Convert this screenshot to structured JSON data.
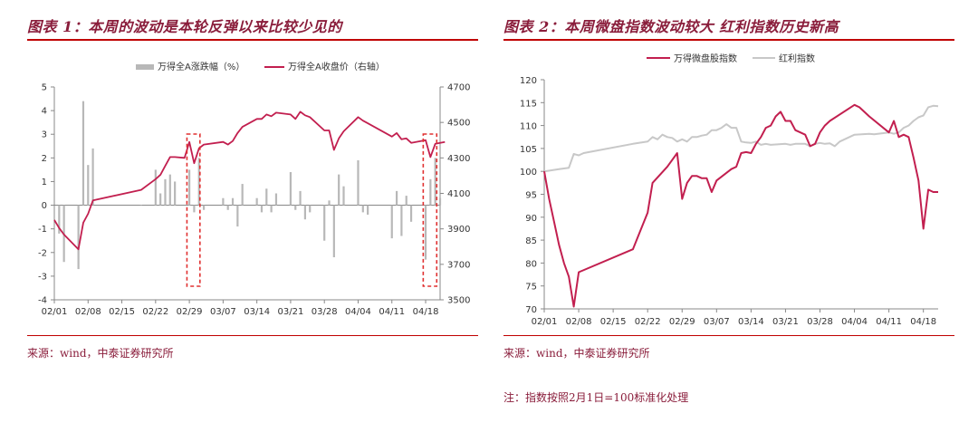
{
  "left": {
    "title": "图表 1：本周的波动是本轮反弹以来比较少见的",
    "source": "来源：wind，中泰证券研究所",
    "chart_data": {
      "type": "bar+line",
      "legend": [
        "万得全A涨跌幅（%）",
        "万得全A收盘价（右轴）"
      ],
      "legend_placement": "top-center",
      "x_ticks": [
        "02/01",
        "02/08",
        "02/15",
        "02/22",
        "02/29",
        "03/07",
        "03/14",
        "03/21",
        "03/28",
        "04/04",
        "04/11",
        "04/18"
      ],
      "y_left": {
        "min": -4,
        "max": 5,
        "ticks": [
          5,
          4,
          3,
          2,
          1,
          0,
          -1,
          -2,
          -3,
          -4
        ]
      },
      "y_right": {
        "min": 3500,
        "max": 4700,
        "ticks": [
          4700,
          4500,
          4300,
          4100,
          3900,
          3700,
          3500
        ]
      },
      "colors": {
        "bars": "#b8b8b8",
        "line": "#c21f4f",
        "highlight": "#e03030"
      },
      "bars": [
        {
          "d": 1,
          "v": -1.2
        },
        {
          "d": 2,
          "v": -2.4
        },
        {
          "d": 5,
          "v": -2.7
        },
        {
          "d": 6,
          "v": 4.4
        },
        {
          "d": 7,
          "v": 1.7
        },
        {
          "d": 8,
          "v": 2.4
        },
        {
          "d": 18,
          "v": 0.0
        },
        {
          "d": 21,
          "v": 1.5
        },
        {
          "d": 22,
          "v": 0.5
        },
        {
          "d": 23,
          "v": 1.1
        },
        {
          "d": 24,
          "v": 1.3
        },
        {
          "d": 25,
          "v": 1.0
        },
        {
          "d": 28,
          "v": 1.5
        },
        {
          "d": 29,
          "v": -0.3
        },
        {
          "d": 30,
          "v": 2.0
        },
        {
          "d": 31,
          "v": -0.2
        },
        {
          "d": 35,
          "v": 0.3
        },
        {
          "d": 36,
          "v": -0.2
        },
        {
          "d": 37,
          "v": 0.3
        },
        {
          "d": 38,
          "v": -0.9
        },
        {
          "d": 39,
          "v": 0.9
        },
        {
          "d": 42,
          "v": 0.3
        },
        {
          "d": 43,
          "v": -0.3
        },
        {
          "d": 44,
          "v": 0.7
        },
        {
          "d": 45,
          "v": -0.3
        },
        {
          "d": 46,
          "v": 0.5
        },
        {
          "d": 49,
          "v": 1.4
        },
        {
          "d": 50,
          "v": -0.2
        },
        {
          "d": 51,
          "v": 0.6
        },
        {
          "d": 52,
          "v": -0.6
        },
        {
          "d": 53,
          "v": -0.3
        },
        {
          "d": 56,
          "v": -1.5
        },
        {
          "d": 57,
          "v": 0.2
        },
        {
          "d": 58,
          "v": -2.2
        },
        {
          "d": 59,
          "v": 1.3
        },
        {
          "d": 60,
          "v": 0.8
        },
        {
          "d": 63,
          "v": 1.9
        },
        {
          "d": 64,
          "v": -0.3
        },
        {
          "d": 65,
          "v": -0.4
        },
        {
          "d": 70,
          "v": -1.4
        },
        {
          "d": 71,
          "v": 0.6
        },
        {
          "d": 72,
          "v": -1.3
        },
        {
          "d": 73,
          "v": 0.4
        },
        {
          "d": 74,
          "v": -0.7
        },
        {
          "d": 77,
          "v": -2.3
        },
        {
          "d": 78,
          "v": 1.1
        },
        {
          "d": 79,
          "v": 2.0
        },
        {
          "d": 80,
          "v": 0.3
        }
      ],
      "close": [
        [
          0,
          3950
        ],
        [
          1,
          3905
        ],
        [
          2,
          3868
        ],
        [
          5,
          3785
        ],
        [
          6,
          3935
        ],
        [
          7,
          3985
        ],
        [
          8,
          4060
        ],
        [
          18,
          4120
        ],
        [
          21,
          4180
        ],
        [
          22,
          4205
        ],
        [
          23,
          4255
        ],
        [
          24,
          4305
        ],
        [
          25,
          4305
        ],
        [
          27,
          4300
        ],
        [
          28,
          4390
        ],
        [
          29,
          4270
        ],
        [
          30,
          4355
        ],
        [
          31,
          4375
        ],
        [
          35,
          4390
        ],
        [
          36,
          4375
        ],
        [
          37,
          4395
        ],
        [
          38,
          4440
        ],
        [
          39,
          4475
        ],
        [
          42,
          4520
        ],
        [
          43,
          4520
        ],
        [
          44,
          4545
        ],
        [
          45,
          4535
        ],
        [
          46,
          4555
        ],
        [
          49,
          4545
        ],
        [
          50,
          4520
        ],
        [
          51,
          4560
        ],
        [
          52,
          4540
        ],
        [
          53,
          4530
        ],
        [
          56,
          4455
        ],
        [
          57,
          4455
        ],
        [
          58,
          4345
        ],
        [
          59,
          4410
        ],
        [
          60,
          4450
        ],
        [
          63,
          4530
        ],
        [
          64,
          4510
        ],
        [
          65,
          4495
        ],
        [
          70,
          4420
        ],
        [
          71,
          4440
        ],
        [
          72,
          4405
        ],
        [
          73,
          4410
        ],
        [
          74,
          4385
        ],
        [
          77,
          4400
        ],
        [
          78,
          4305
        ],
        [
          79,
          4380
        ],
        [
          80,
          4385
        ],
        [
          81,
          4390
        ]
      ],
      "highlights": [
        {
          "from": 27.5,
          "to": 30.2
        },
        {
          "from": 76.5,
          "to": 79.3
        }
      ]
    }
  },
  "right": {
    "title": "图表 2：本周微盘指数波动较大  红利指数历史新高",
    "source": "来源：wind，中泰证券研究所",
    "note": "注：指数按照2月1日=100标准化处理",
    "chart_data": {
      "type": "line",
      "legend": [
        "万得微盘股指数",
        "红利指数"
      ],
      "legend_placement": "top-center",
      "x_ticks": [
        "02/01",
        "02/08",
        "02/15",
        "02/22",
        "02/29",
        "03/07",
        "03/14",
        "03/21",
        "03/28",
        "04/04",
        "04/11",
        "04/18"
      ],
      "y": {
        "min": 70,
        "max": 120,
        "ticks": [
          120,
          115,
          110,
          105,
          100,
          95,
          90,
          85,
          80,
          75,
          70
        ]
      },
      "colors": {
        "micro": "#c21f4f",
        "dividend": "#c8c8c8"
      },
      "series": [
        {
          "name": "万得微盘股指数",
          "points": [
            [
              0,
              100
            ],
            [
              1,
              94
            ],
            [
              2,
              89
            ],
            [
              3,
              84
            ],
            [
              4,
              80
            ],
            [
              5,
              77
            ],
            [
              6,
              70.5
            ],
            [
              7,
              78
            ],
            [
              18,
              83
            ],
            [
              21,
              91
            ],
            [
              22,
              97.5
            ],
            [
              25,
              101
            ],
            [
              27,
              104
            ],
            [
              28,
              94
            ],
            [
              29,
              97.5
            ],
            [
              30,
              99
            ],
            [
              31,
              99
            ],
            [
              32,
              98.5
            ],
            [
              33,
              98.5
            ],
            [
              34,
              95.5
            ],
            [
              35,
              98
            ],
            [
              38,
              100.5
            ],
            [
              39,
              101
            ],
            [
              40,
              104
            ],
            [
              41,
              104.2
            ],
            [
              42,
              104
            ],
            [
              43,
              106
            ],
            [
              44,
              107.5
            ],
            [
              45,
              109.5
            ],
            [
              46,
              110
            ],
            [
              47,
              112
            ],
            [
              48,
              113
            ],
            [
              49,
              111
            ],
            [
              50,
              111
            ],
            [
              51,
              109
            ],
            [
              52,
              108.5
            ],
            [
              53,
              108
            ],
            [
              54,
              105.5
            ],
            [
              55,
              106
            ],
            [
              56,
              108.5
            ],
            [
              57,
              110
            ],
            [
              58,
              111
            ],
            [
              63,
              114.5
            ],
            [
              64,
              114
            ],
            [
              65,
              113
            ],
            [
              66,
              112
            ],
            [
              70,
              108.5
            ],
            [
              71,
              111
            ],
            [
              72,
              107.5
            ],
            [
              73,
              108
            ],
            [
              74,
              107.5
            ],
            [
              75,
              103
            ],
            [
              76,
              98
            ],
            [
              77,
              87.5
            ],
            [
              78,
              96
            ],
            [
              79,
              95.5
            ],
            [
              80,
              95.5
            ]
          ]
        },
        {
          "name": "红利指数",
          "points": [
            [
              0,
              100
            ],
            [
              3,
              100.5
            ],
            [
              5,
              100.8
            ],
            [
              6,
              103.8
            ],
            [
              7,
              103.5
            ],
            [
              8,
              104
            ],
            [
              18,
              106
            ],
            [
              21,
              106.5
            ],
            [
              22,
              107.5
            ],
            [
              23,
              107
            ],
            [
              24,
              108
            ],
            [
              25,
              107.5
            ],
            [
              26,
              107.3
            ],
            [
              27,
              106.5
            ],
            [
              28,
              107
            ],
            [
              29,
              106.5
            ],
            [
              30,
              107.5
            ],
            [
              31,
              107.5
            ],
            [
              32,
              107.8
            ],
            [
              33,
              108
            ],
            [
              34,
              109
            ],
            [
              35,
              109
            ],
            [
              36,
              109.5
            ],
            [
              37,
              110.3
            ],
            [
              38,
              109.5
            ],
            [
              39,
              109.5
            ],
            [
              40,
              106.5
            ],
            [
              41,
              106.3
            ],
            [
              42,
              106.2
            ],
            [
              43,
              106.5
            ],
            [
              44,
              105.8
            ],
            [
              45,
              106
            ],
            [
              46,
              105.8
            ],
            [
              49,
              106
            ],
            [
              50,
              105.8
            ],
            [
              51,
              106
            ],
            [
              52,
              106
            ],
            [
              53,
              106
            ],
            [
              54,
              105.5
            ],
            [
              55,
              106
            ],
            [
              56,
              106.2
            ],
            [
              57,
              106
            ],
            [
              58,
              106.1
            ],
            [
              59,
              105.5
            ],
            [
              60,
              106.5
            ],
            [
              63,
              108
            ],
            [
              66,
              108.2
            ],
            [
              67,
              108.1
            ],
            [
              70,
              108.5
            ],
            [
              71,
              108.2
            ],
            [
              72,
              108.5
            ],
            [
              73,
              109.5
            ],
            [
              74,
              110
            ],
            [
              75,
              111
            ],
            [
              76,
              111.8
            ],
            [
              77,
              112.2
            ],
            [
              78,
              114
            ],
            [
              79,
              114.3
            ],
            [
              80,
              114.2
            ]
          ]
        }
      ]
    }
  }
}
